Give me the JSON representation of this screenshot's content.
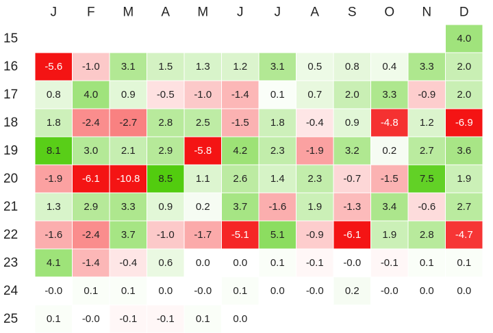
{
  "chart_data": {
    "type": "heatmap",
    "columns": [
      "J",
      "F",
      "M",
      "A",
      "M",
      "J",
      "J",
      "A",
      "S",
      "O",
      "N",
      "D"
    ],
    "rows": [
      "15",
      "16",
      "17",
      "18",
      "19",
      "20",
      "21",
      "22",
      "23",
      "24",
      "25"
    ],
    "values": [
      [
        null,
        null,
        null,
        null,
        null,
        null,
        null,
        null,
        null,
        null,
        null,
        4.0
      ],
      [
        -5.6,
        -1.0,
        3.1,
        1.5,
        1.3,
        1.2,
        3.1,
        0.5,
        0.8,
        0.4,
        3.3,
        2.0
      ],
      [
        0.8,
        4.0,
        0.9,
        -0.5,
        -1.0,
        -1.4,
        0.1,
        0.7,
        2.0,
        3.3,
        -0.9,
        2.0
      ],
      [
        1.8,
        -2.4,
        -2.7,
        2.8,
        2.5,
        -1.5,
        1.8,
        -0.4,
        0.9,
        -4.8,
        1.2,
        -6.9
      ],
      [
        8.1,
        3.0,
        2.1,
        2.9,
        -5.8,
        4.2,
        2.3,
        -1.9,
        3.2,
        0.2,
        2.7,
        3.6
      ],
      [
        -1.9,
        -6.1,
        -10.8,
        8.5,
        1.1,
        2.6,
        1.4,
        2.3,
        -0.7,
        -1.5,
        7.5,
        1.9
      ],
      [
        1.3,
        2.9,
        3.3,
        0.9,
        0.2,
        3.7,
        -1.6,
        1.9,
        -1.3,
        3.4,
        -0.6,
        2.7
      ],
      [
        -1.6,
        -2.4,
        3.7,
        -1.0,
        -1.7,
        -5.1,
        5.1,
        -0.9,
        -6.1,
        1.9,
        2.8,
        -4.7
      ],
      [
        4.1,
        -1.4,
        -0.4,
        0.6,
        0.0,
        0.0,
        0.1,
        -0.1,
        -0.0,
        -0.1,
        0.1,
        0.1
      ],
      [
        -0.0,
        0.1,
        0.1,
        0.0,
        -0.0,
        0.1,
        0.0,
        -0.0,
        0.2,
        -0.0,
        0.0,
        0.0
      ],
      [
        0.1,
        -0.0,
        -0.1,
        -0.1,
        0.1,
        0.0,
        null,
        null,
        null,
        null,
        null,
        null
      ]
    ],
    "labels": [
      [
        null,
        null,
        null,
        null,
        null,
        null,
        null,
        null,
        null,
        null,
        null,
        "4.0"
      ],
      [
        "-5.6",
        "-1.0",
        "3.1",
        "1.5",
        "1.3",
        "1.2",
        "3.1",
        "0.5",
        "0.8",
        "0.4",
        "3.3",
        "2.0"
      ],
      [
        "0.8",
        "4.0",
        "0.9",
        "-0.5",
        "-1.0",
        "-1.4",
        "0.1",
        "0.7",
        "2.0",
        "3.3",
        "-0.9",
        "2.0"
      ],
      [
        "1.8",
        "-2.4",
        "-2.7",
        "2.8",
        "2.5",
        "-1.5",
        "1.8",
        "-0.4",
        "0.9",
        "-4.8",
        "1.2",
        "-6.9"
      ],
      [
        "8.1",
        "3.0",
        "2.1",
        "2.9",
        "-5.8",
        "4.2",
        "2.3",
        "-1.9",
        "3.2",
        "0.2",
        "2.7",
        "3.6"
      ],
      [
        "-1.9",
        "-6.1",
        "-10.8",
        "8.5",
        "1.1",
        "2.6",
        "1.4",
        "2.3",
        "-0.7",
        "-1.5",
        "7.5",
        "1.9"
      ],
      [
        "1.3",
        "2.9",
        "3.3",
        "0.9",
        "0.2",
        "3.7",
        "-1.6",
        "1.9",
        "-1.3",
        "3.4",
        "-0.6",
        "2.7"
      ],
      [
        "-1.6",
        "-2.4",
        "3.7",
        "-1.0",
        "-1.7",
        "-5.1",
        "5.1",
        "-0.9",
        "-6.1",
        "1.9",
        "2.8",
        "-4.7"
      ],
      [
        "4.1",
        "-1.4",
        "-0.4",
        "0.6",
        "0.0",
        "0.0",
        "0.1",
        "-0.1",
        "-0.0",
        "-0.1",
        "0.1",
        "0.1"
      ],
      [
        "-0.0",
        "0.1",
        "0.1",
        "0.0",
        "-0.0",
        "0.1",
        "0.0",
        "-0.0",
        "0.2",
        "-0.0",
        "0.0",
        "0.0"
      ],
      [
        "0.1",
        "-0.0",
        "-0.1",
        "-0.1",
        "0.1",
        "0.0",
        null,
        null,
        null,
        null,
        null,
        null
      ]
    ],
    "color_scale": {
      "negative": "#f41414",
      "positive": "#52cc0f",
      "neutral": "#ffffff"
    },
    "title": "",
    "xlabel": "",
    "ylabel": "",
    "grid": false,
    "legend": "none"
  }
}
